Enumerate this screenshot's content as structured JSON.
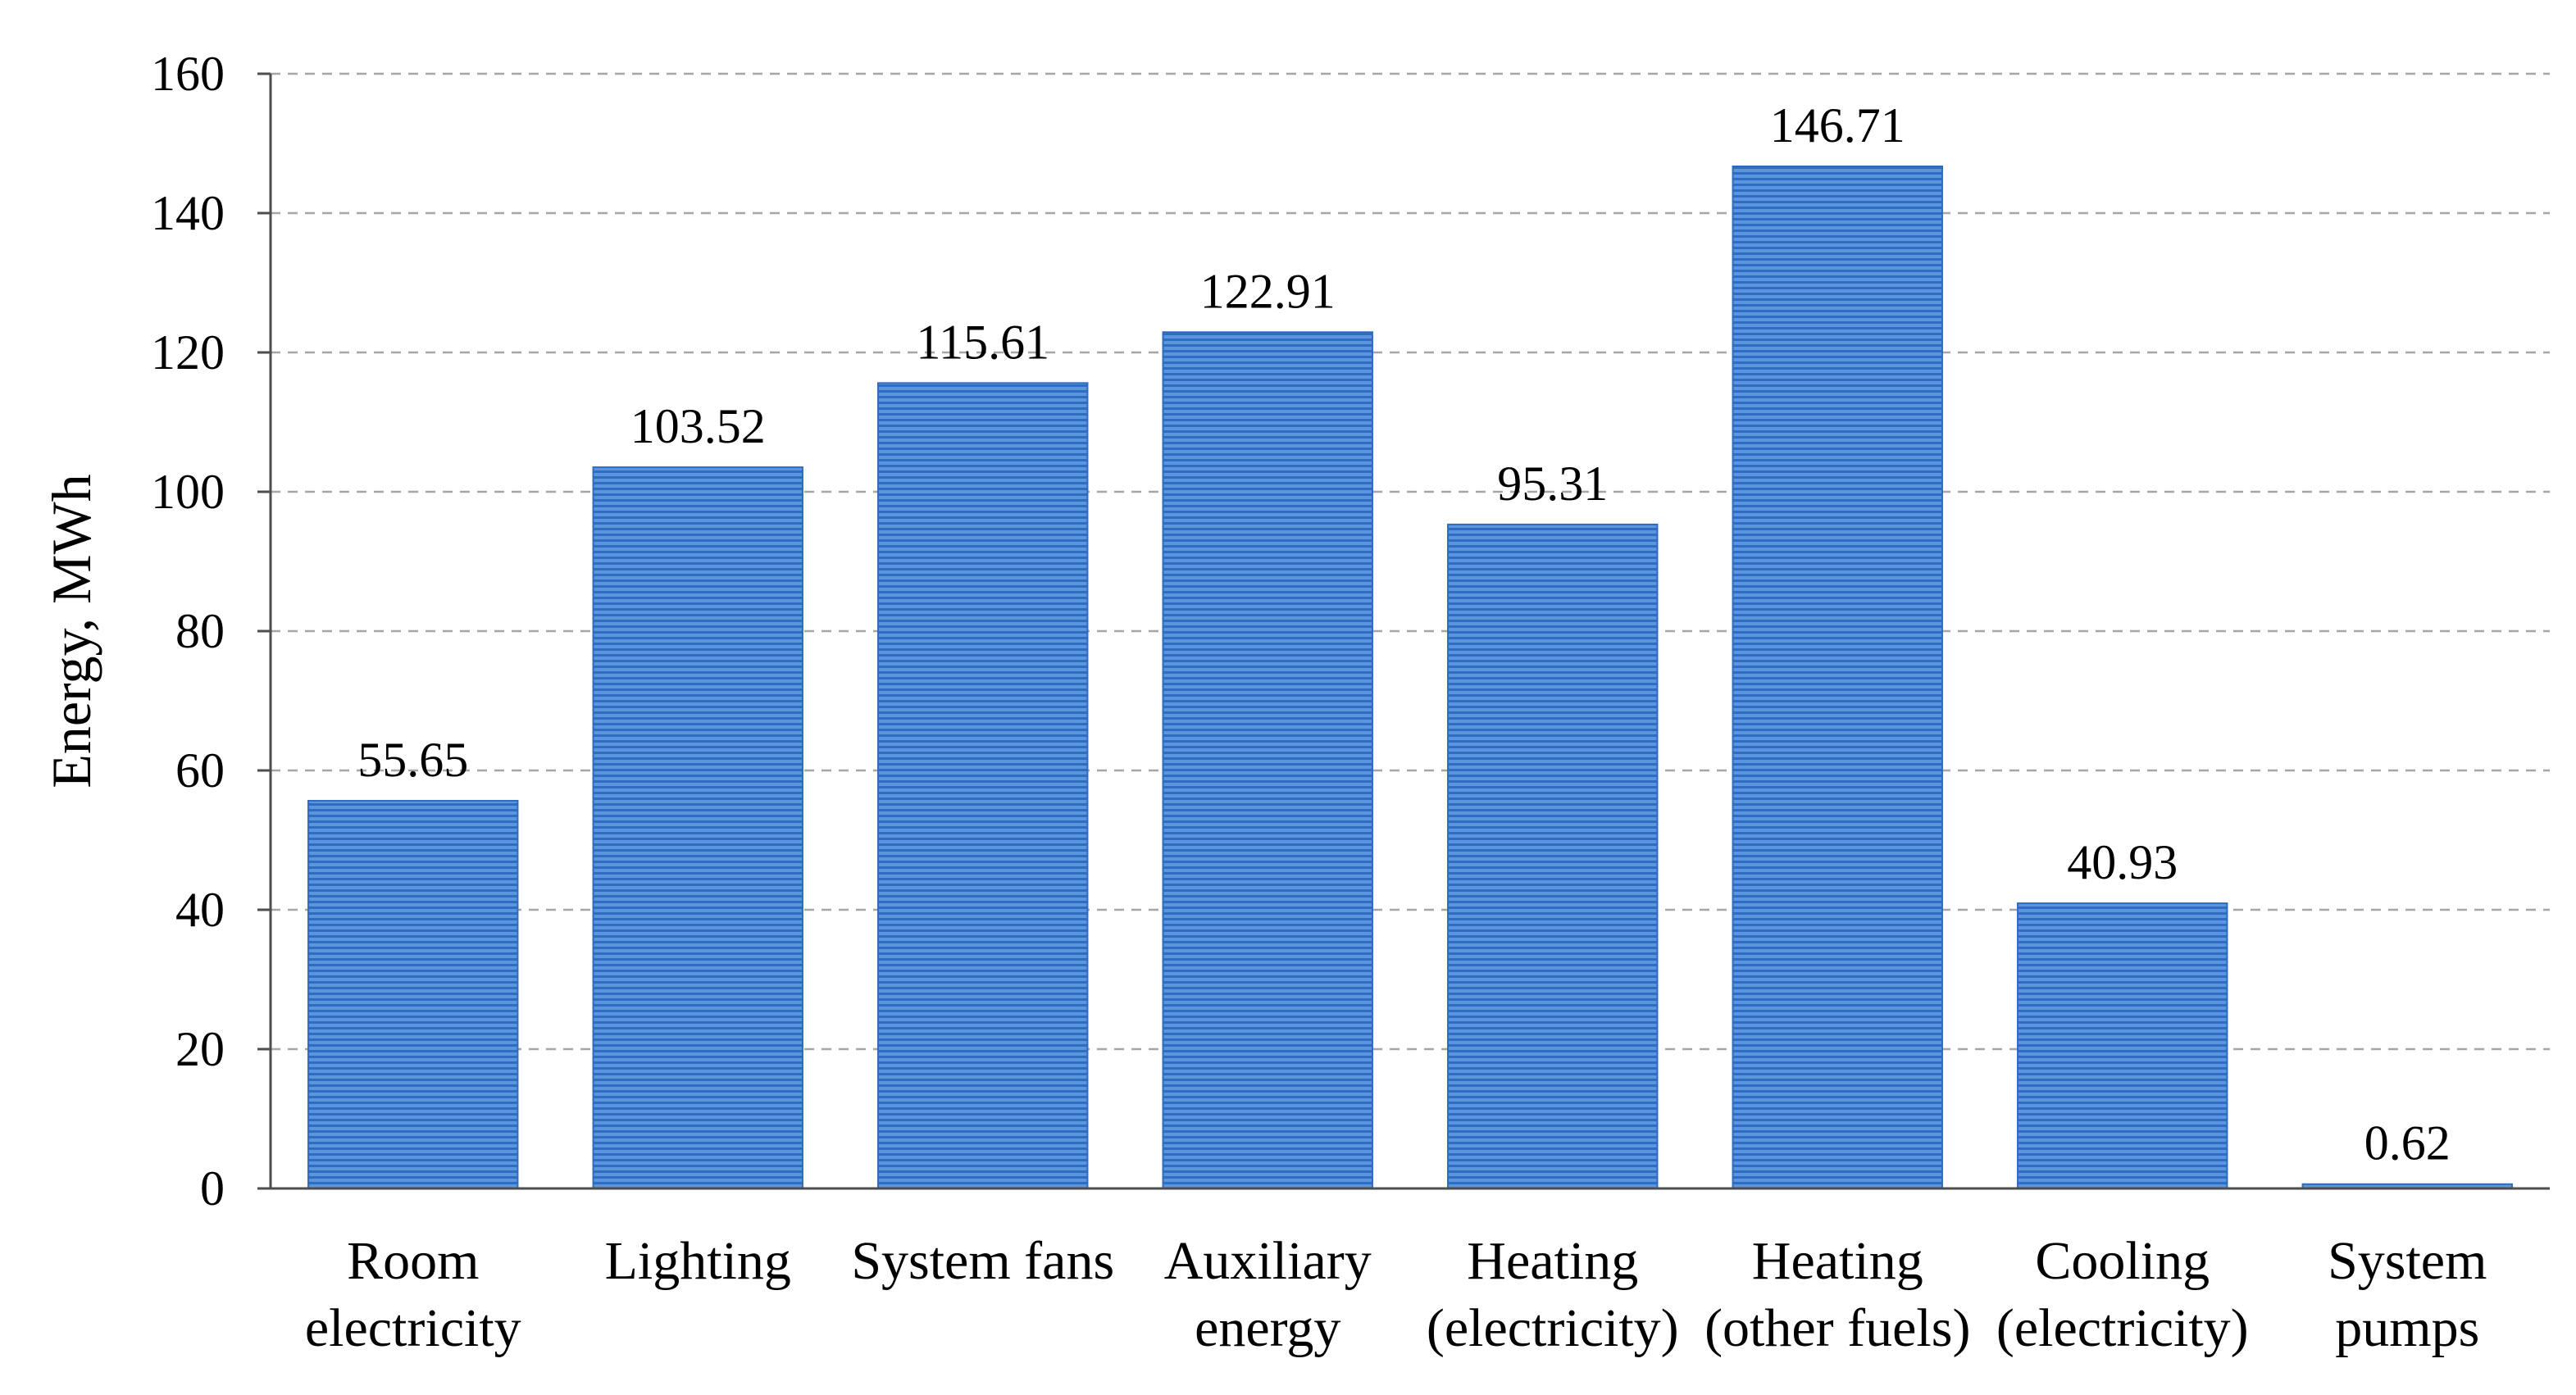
{
  "chart_data": {
    "type": "bar",
    "categories": [
      [
        "Room",
        "electricity"
      ],
      [
        "Lighting"
      ],
      [
        "System fans"
      ],
      [
        "Auxiliary",
        "energy"
      ],
      [
        "Heating",
        "(electricity)"
      ],
      [
        "Heating",
        "(other fuels)"
      ],
      [
        "Cooling",
        "(electricity)"
      ],
      [
        "System",
        "pumps"
      ]
    ],
    "values": [
      55.65,
      103.52,
      115.61,
      122.91,
      95.31,
      146.71,
      40.93,
      0.62
    ],
    "data_labels": [
      "55.65",
      "103.52",
      "115.61",
      "122.91",
      "95.31",
      "146.71",
      "40.93",
      "0.62"
    ],
    "title": "",
    "xlabel": "",
    "ylabel": "Energy, MWh",
    "ylim": [
      0,
      160
    ],
    "yticks": [
      0,
      20,
      40,
      60,
      80,
      100,
      120,
      140,
      160
    ],
    "grid": "horizontal dashed",
    "legend": "none",
    "bar_color": "#4a86d4",
    "bar_stripe_color": "#2e6bc0"
  }
}
